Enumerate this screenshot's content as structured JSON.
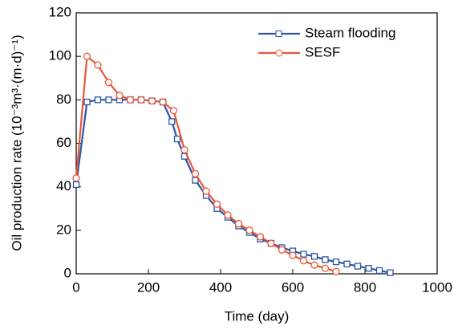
{
  "chart_data": {
    "type": "line",
    "xlabel": "Time (day)",
    "ylabel": "Oil production rate (10⁻³m³·(m·d)⁻¹)",
    "xlim": [
      0,
      1000
    ],
    "xticks": [
      0,
      200,
      400,
      600,
      800,
      1000
    ],
    "ylim": [
      0,
      120
    ],
    "yticks": [
      0,
      20,
      40,
      60,
      80,
      100,
      120
    ],
    "legend": "upper right",
    "series": [
      {
        "name": "Steam flooding",
        "color": "#2b55a6",
        "marker": "square",
        "x": [
          0,
          30,
          60,
          90,
          120,
          150,
          180,
          210,
          240,
          265,
          280,
          300,
          330,
          360,
          390,
          420,
          450,
          480,
          510,
          540,
          570,
          600,
          630,
          660,
          690,
          720,
          750,
          780,
          810,
          840,
          870
        ],
        "values": [
          41,
          79,
          80,
          80,
          80,
          80,
          80,
          79.5,
          79,
          70,
          62,
          54,
          43,
          36,
          30,
          26,
          22,
          19,
          16,
          14,
          12,
          10.5,
          9,
          8,
          6.5,
          5.5,
          4.5,
          3.5,
          2.5,
          1.5,
          0.5
        ]
      },
      {
        "name": "SESF",
        "color": "#e8573a",
        "marker": "circle",
        "x": [
          0,
          30,
          60,
          90,
          120,
          150,
          180,
          210,
          240,
          270,
          300,
          330,
          360,
          390,
          420,
          450,
          480,
          510,
          540,
          570,
          600,
          630,
          660,
          690,
          720
        ],
        "values": [
          44,
          100,
          96,
          88,
          82,
          80,
          80,
          79.5,
          79,
          75,
          57,
          46,
          38,
          32,
          27,
          23,
          20,
          17,
          14,
          11,
          8.5,
          6,
          4,
          2.5,
          1
        ]
      }
    ]
  }
}
